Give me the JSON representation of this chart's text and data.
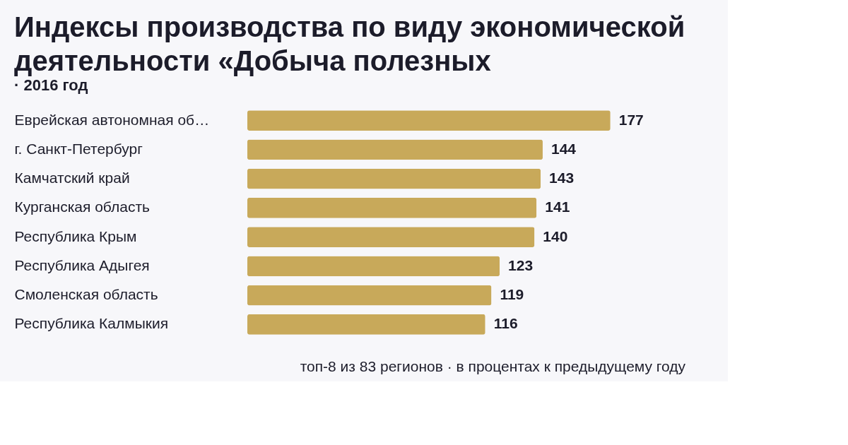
{
  "chart_data": {
    "type": "bar",
    "orientation": "horizontal",
    "title": "Индексы производства по виду экономической деятельности «Добыча полезных",
    "subtitle": "· 2016 год",
    "categories": [
      "Еврейская автономная об…",
      "г. Санкт-Петербург",
      "Камчатский край",
      "Курганская область",
      "Республика Крым",
      "Республика Адыгея",
      "Смоленская область",
      "Республика Калмыкия"
    ],
    "values": [
      177,
      144,
      143,
      141,
      140,
      123,
      119,
      116
    ],
    "color": "#c8a95a",
    "data_labels": true,
    "annotations": [
      "топ-8 из 83 регионов · в процентах к предыдущему году"
    ]
  }
}
